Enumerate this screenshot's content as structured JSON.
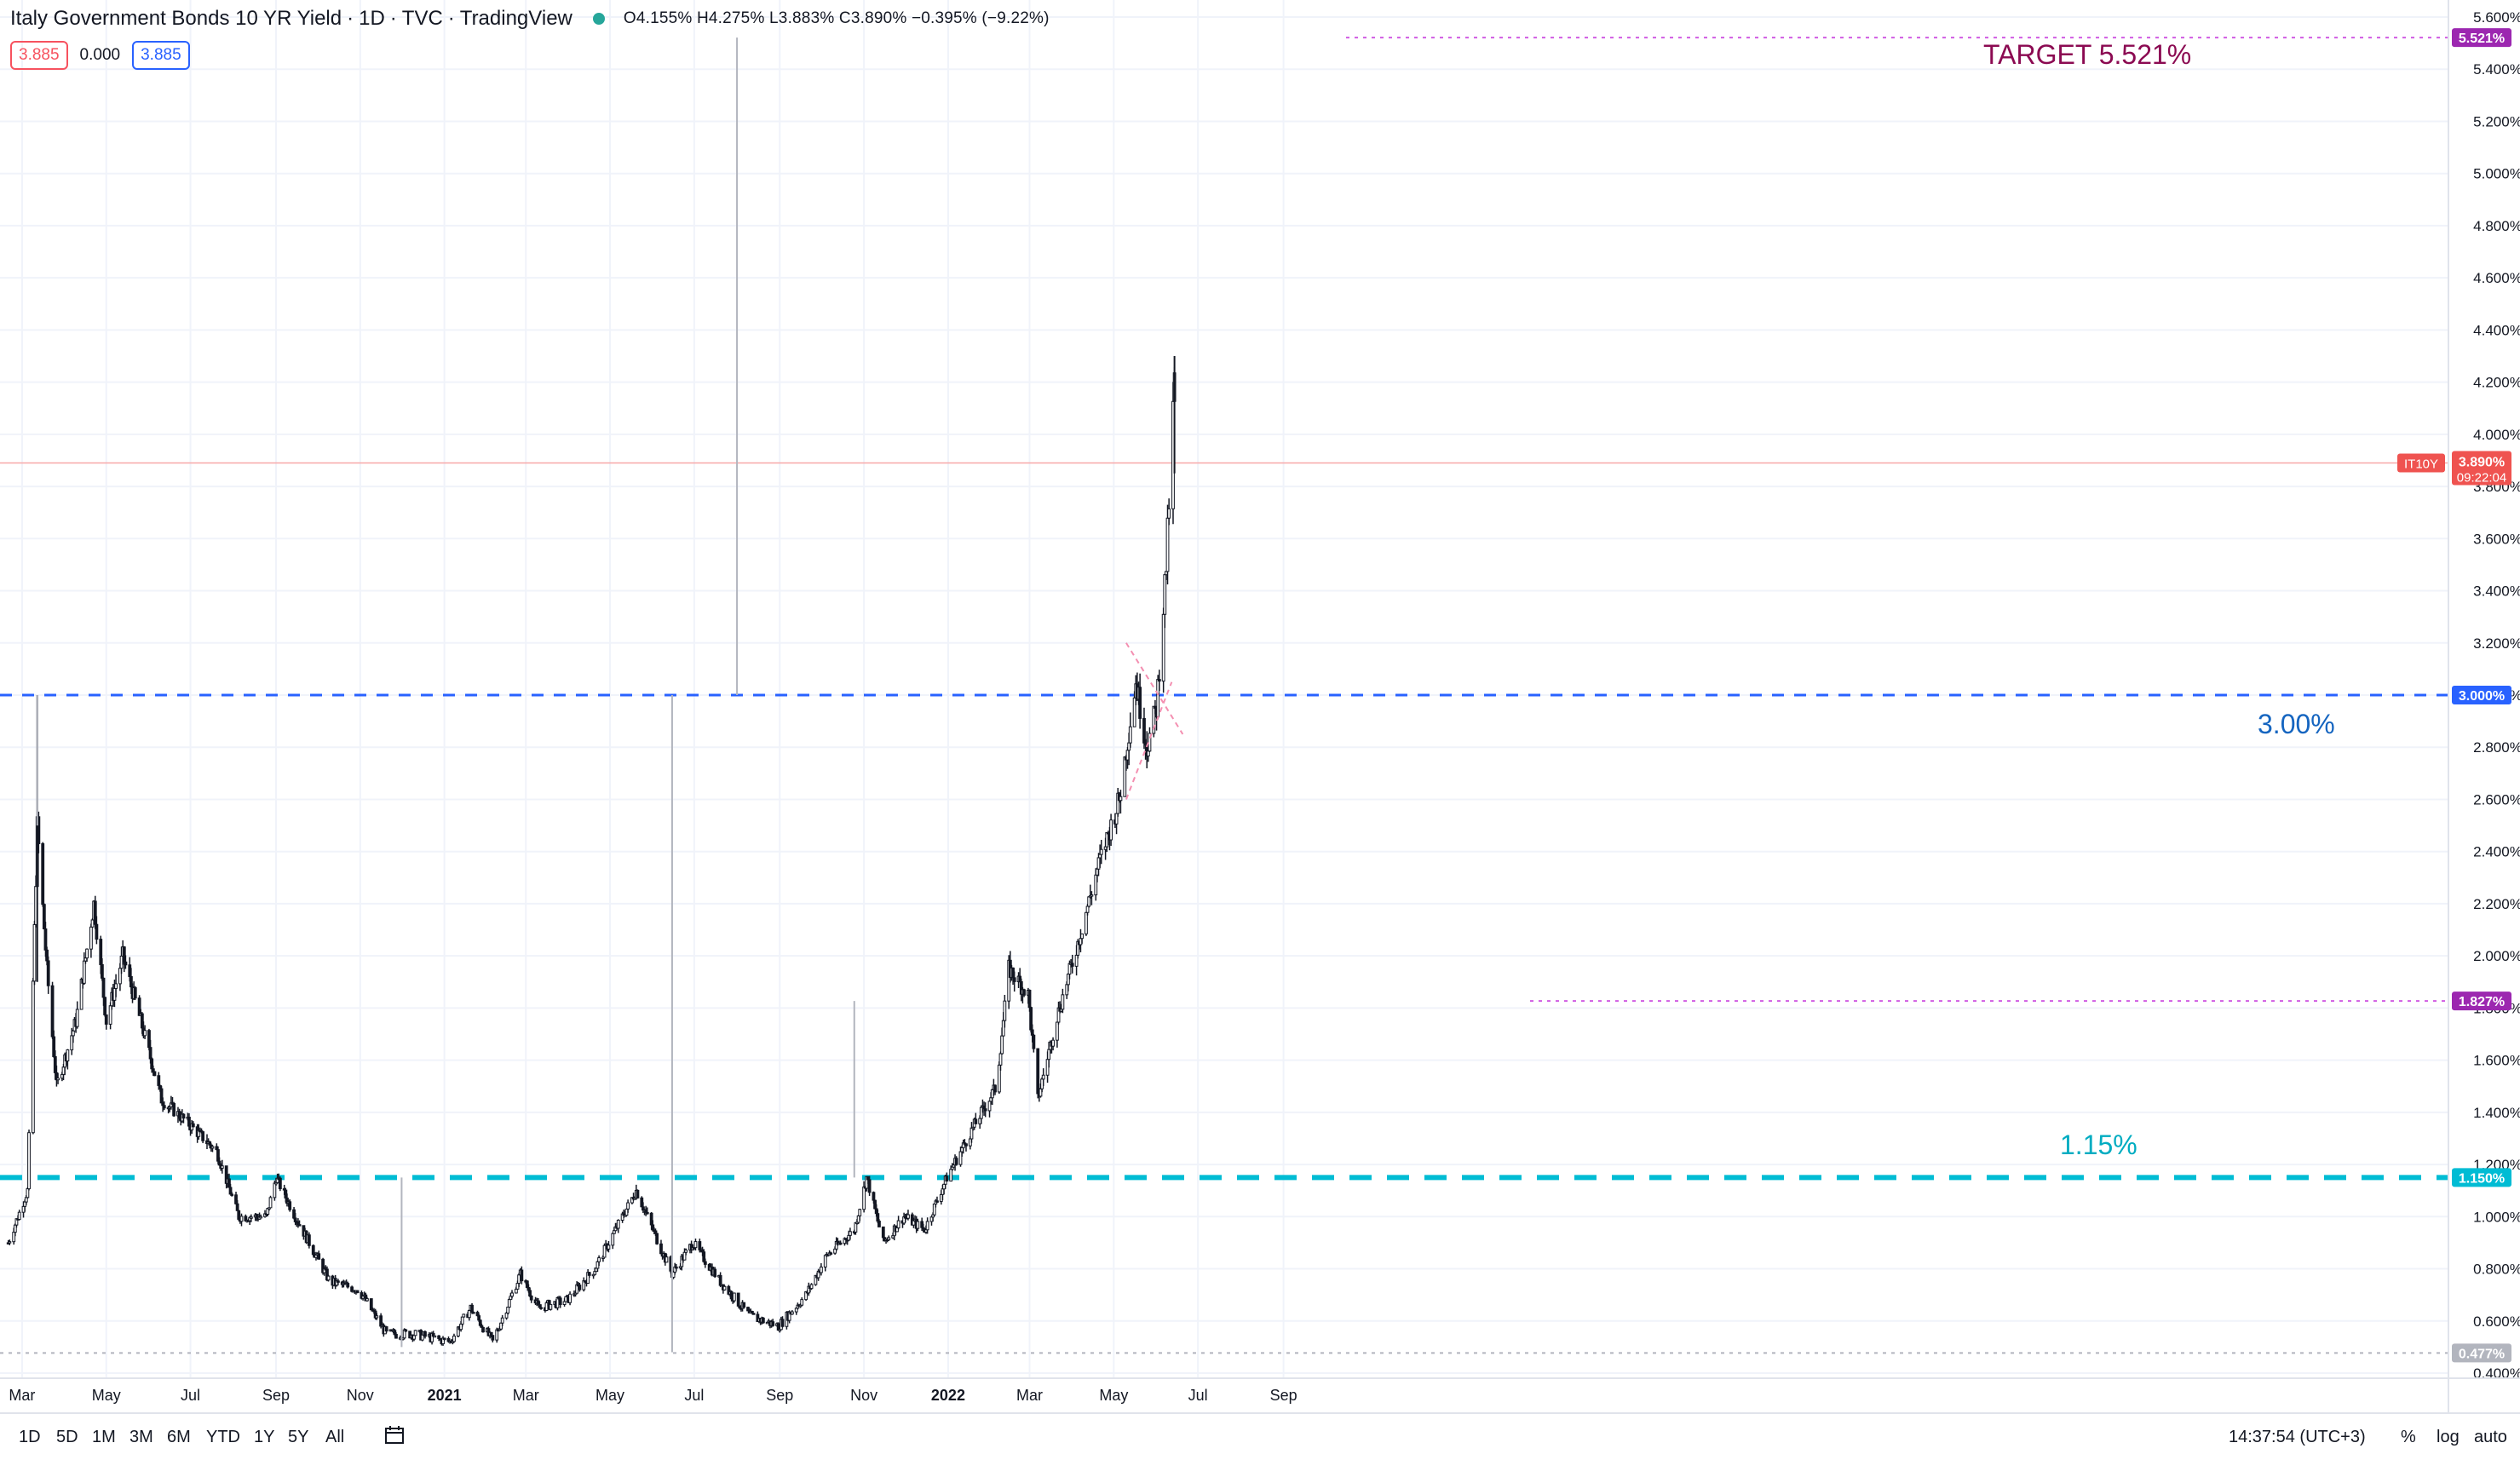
{
  "legend": {
    "title": "Italy Government Bonds 10 YR Yield",
    "interval": "1D",
    "exchange": "TVC",
    "source": "TradingView",
    "open": "4.155%",
    "high": "4.275%",
    "low": "3.883%",
    "close": "3.890%",
    "change": "−0.395% (−9.22%)",
    "sell_price": "3.885",
    "spread": "0.000",
    "buy_price": "3.885"
  },
  "annotations": {
    "target": "TARGET 5.521%",
    "level_300": "3.00%",
    "level_115": "1.15%"
  },
  "price_tag": {
    "symbol": "IT10Y",
    "price": "3.890%",
    "countdown": "09:22:04"
  },
  "bottom_bar": {
    "ranges": [
      "1D",
      "5D",
      "1M",
      "3M",
      "6M",
      "YTD",
      "1Y",
      "5Y",
      "All"
    ],
    "time": "14:37:54 (UTC+3)",
    "percent": "%",
    "log": "log",
    "auto": "auto"
  },
  "colors": {
    "up": "#26a69a",
    "down": "#ef5350",
    "candle": "#131722",
    "blue_dashed": "#2962ff",
    "teal_dashed": "#00bcd4",
    "purple_dotted": "#d05ce3",
    "target_text": "#8b0a52",
    "label_300_text": "#1565c0",
    "label_115_text": "#00acc1"
  },
  "chart_data": {
    "type": "candlestick",
    "title": "Italy Government Bonds 10 YR Yield",
    "y_unit": "%",
    "ylim": [
      0.4,
      5.6
    ],
    "y_ticks": [
      "0.400%",
      "0.600%",
      "0.800%",
      "1.000%",
      "1.200%",
      "1.400%",
      "1.600%",
      "1.800%",
      "2.000%",
      "2.200%",
      "2.400%",
      "2.600%",
      "2.800%",
      "3.000%",
      "3.200%",
      "3.400%",
      "3.600%",
      "3.800%",
      "4.000%",
      "4.200%",
      "4.400%",
      "4.600%",
      "4.800%",
      "5.000%",
      "5.200%",
      "5.400%",
      "5.600%"
    ],
    "x_ticks": [
      "Mar",
      "May",
      "Jul",
      "Sep",
      "Nov",
      "2021",
      "Mar",
      "May",
      "Jul",
      "Sep",
      "Nov",
      "2022",
      "Mar",
      "May",
      "Jul",
      "Sep"
    ],
    "grid": true,
    "last_price": 3.89,
    "horizontal_levels": [
      {
        "value": 5.521,
        "label": "5.521%",
        "style": "dotted",
        "color": "#d05ce3"
      },
      {
        "value": 3.0,
        "label": "3.000%",
        "style": "dashed",
        "color": "#2962ff"
      },
      {
        "value": 1.827,
        "label": "1.827%",
        "style": "dotted",
        "color": "#d05ce3"
      },
      {
        "value": 1.15,
        "label": "1.150%",
        "style": "dashed",
        "color": "#00bcd4"
      },
      {
        "value": 0.477,
        "label": "0.477%",
        "style": "dotted",
        "color": "#b2b5be"
      }
    ],
    "price_path": [
      [
        "2020-02-20",
        0.9
      ],
      [
        "2020-03-05",
        1.1
      ],
      [
        "2020-03-12",
        2.5
      ],
      [
        "2020-03-19",
        1.95
      ],
      [
        "2020-03-26",
        1.5
      ],
      [
        "2020-04-09",
        1.75
      ],
      [
        "2020-04-22",
        2.2
      ],
      [
        "2020-05-01",
        1.75
      ],
      [
        "2020-05-13",
        2.0
      ],
      [
        "2020-05-26",
        1.75
      ],
      [
        "2020-06-10",
        1.45
      ],
      [
        "2020-07-01",
        1.35
      ],
      [
        "2020-07-20",
        1.25
      ],
      [
        "2020-08-05",
        1.0
      ],
      [
        "2020-08-25",
        1.0
      ],
      [
        "2020-09-01",
        1.15
      ],
      [
        "2020-09-15",
        1.0
      ],
      [
        "2020-10-10",
        0.75
      ],
      [
        "2020-10-31",
        0.72
      ],
      [
        "2020-11-20",
        0.55
      ],
      [
        "2020-12-10",
        0.55
      ],
      [
        "2021-01-05",
        0.52
      ],
      [
        "2021-01-20",
        0.65
      ],
      [
        "2021-02-05",
        0.52
      ],
      [
        "2021-02-25",
        0.78
      ],
      [
        "2021-03-10",
        0.65
      ],
      [
        "2021-03-31",
        0.68
      ],
      [
        "2021-04-20",
        0.8
      ],
      [
        "2021-05-20",
        1.1
      ],
      [
        "2021-06-05",
        0.9
      ],
      [
        "2021-06-15",
        0.78
      ],
      [
        "2021-06-30",
        0.9
      ],
      [
        "2021-07-20",
        0.75
      ],
      [
        "2021-08-10",
        0.62
      ],
      [
        "2021-08-31",
        0.58
      ],
      [
        "2021-09-20",
        0.7
      ],
      [
        "2021-10-05",
        0.85
      ],
      [
        "2021-10-25",
        0.95
      ],
      [
        "2021-11-03",
        1.15
      ],
      [
        "2021-11-15",
        0.9
      ],
      [
        "2021-11-30",
        1.0
      ],
      [
        "2021-12-15",
        0.95
      ],
      [
        "2021-12-31",
        1.15
      ],
      [
        "2022-01-20",
        1.35
      ],
      [
        "2022-02-05",
        1.5
      ],
      [
        "2022-02-14",
        1.95
      ],
      [
        "2022-02-28",
        1.85
      ],
      [
        "2022-03-07",
        1.45
      ],
      [
        "2022-03-20",
        1.75
      ],
      [
        "2022-04-05",
        2.05
      ],
      [
        "2022-04-20",
        2.35
      ],
      [
        "2022-05-05",
        2.6
      ],
      [
        "2022-05-17",
        3.05
      ],
      [
        "2022-05-25",
        2.8
      ],
      [
        "2022-06-01",
        2.95
      ],
      [
        "2022-06-08",
        3.5
      ],
      [
        "2022-06-14",
        4.2
      ],
      [
        "2022-06-15",
        3.89
      ]
    ]
  }
}
